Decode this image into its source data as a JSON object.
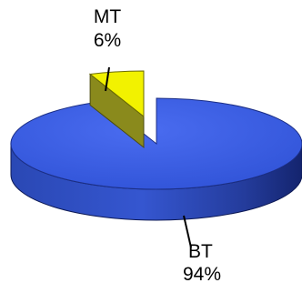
{
  "chart_data": {
    "type": "pie",
    "style": "3d-exploded",
    "title": "",
    "slices": [
      {
        "label": "MT",
        "value_label": "6%",
        "value": 6,
        "color": "#f2f200",
        "exploded": true
      },
      {
        "label": "BT",
        "value_label": "94%",
        "value": 94,
        "color": "#3a5fe0",
        "exploded": false
      }
    ]
  },
  "colors": {
    "bt_top": "#3a5fe0",
    "bt_side_light": "#3556d0",
    "bt_side_dark": "#14246e",
    "mt_top": "#f2f200",
    "mt_side": "#8a8a1c"
  }
}
